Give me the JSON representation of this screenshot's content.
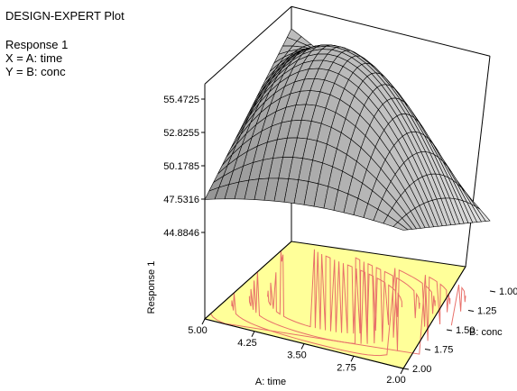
{
  "header": {
    "title": "DESIGN-EXPERT Plot",
    "response": "Response 1",
    "x_def": "X = A: time",
    "y_def": "Y = B: conc"
  },
  "chart_data": {
    "type": "surface3d",
    "title": "DESIGN-EXPERT Plot",
    "response_name": "Response 1",
    "x_axis": {
      "label": "A: time",
      "ticks": [
        5.0,
        4.25,
        3.5,
        2.75,
        2.0
      ],
      "tick_labels": [
        "5.00",
        "4.25",
        "3.50",
        "2.75",
        "2.00"
      ],
      "range": [
        2.0,
        5.0
      ]
    },
    "y_axis": {
      "label": "B: conc",
      "ticks": [
        1.0,
        1.25,
        1.5,
        1.75,
        2.0
      ],
      "tick_labels": [
        "1.00",
        "1.25",
        "1.50",
        "1.75",
        "2.00"
      ],
      "range": [
        1.0,
        2.0
      ]
    },
    "z_axis": {
      "label": "Response 1",
      "ticks": [
        44.8846,
        47.5316,
        50.1785,
        52.8255,
        55.4725
      ],
      "tick_labels": [
        "44.8846",
        "47.5316",
        "50.1785",
        "52.8255",
        "55.4725"
      ],
      "range": [
        44.8846,
        55.4725
      ]
    },
    "surface_corners": [
      {
        "time": 5.0,
        "conc": 2.0,
        "response": 47.5
      },
      {
        "time": 5.0,
        "conc": 1.0,
        "response": 54.9
      },
      {
        "time": 2.0,
        "conc": 1.0,
        "response": 43.6
      },
      {
        "time": 2.0,
        "conc": 2.0,
        "response": 49.0
      }
    ],
    "surface_peak": {
      "time": 3.9,
      "conc": 1.2,
      "response": 55.4
    },
    "grid_divisions": 20,
    "colors": {
      "surface": "#cfcfcf",
      "floor": "#ffff99",
      "contour": "#e8706a",
      "edge": "#000000"
    }
  }
}
